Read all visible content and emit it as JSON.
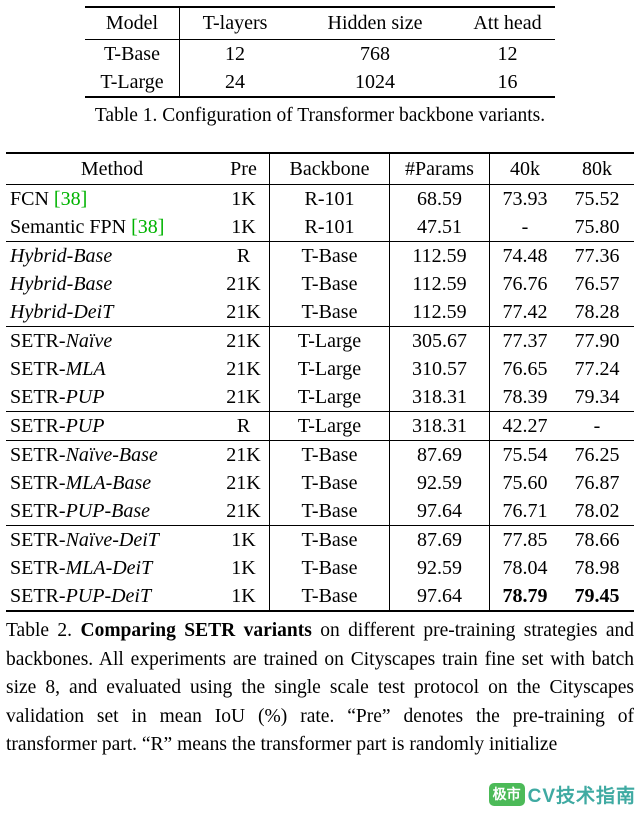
{
  "colors": {
    "citation": "#00b300",
    "watermark_badge": "#3db54a",
    "watermark_text": "#2fa39b"
  },
  "table1": {
    "headers": [
      "Model",
      "T-layers",
      "Hidden size",
      "Att head"
    ],
    "rows": [
      [
        "T-Base",
        "12",
        "768",
        "12"
      ],
      [
        "T-Large",
        "24",
        "1024",
        "16"
      ]
    ],
    "caption": "Table 1. Configuration of Transformer backbone variants."
  },
  "table2": {
    "headers": [
      "Method",
      "Pre",
      "Backbone",
      "#Params",
      "40k",
      "80k"
    ],
    "groups": [
      {
        "rows": [
          {
            "method": [
              {
                "t": "FCN",
                "i": false
              }
            ],
            "cite": "[38]",
            "pre": "1K",
            "backbone": "R-101",
            "params": "68.59",
            "k40": "73.93",
            "k80": "75.52"
          },
          {
            "method": [
              {
                "t": "Semantic FPN",
                "i": false
              }
            ],
            "cite": "[38]",
            "pre": "1K",
            "backbone": "R-101",
            "params": "47.51",
            "k40": "-",
            "k80": "75.80"
          }
        ]
      },
      {
        "rows": [
          {
            "method": [
              {
                "t": "Hybrid-Base",
                "i": true
              }
            ],
            "pre": "R",
            "backbone": "T-Base",
            "params": "112.59",
            "k40": "74.48",
            "k80": "77.36"
          },
          {
            "method": [
              {
                "t": "Hybrid-Base",
                "i": true
              }
            ],
            "pre": "21K",
            "backbone": "T-Base",
            "params": "112.59",
            "k40": "76.76",
            "k80": "76.57"
          },
          {
            "method": [
              {
                "t": "Hybrid-DeiT",
                "i": true
              }
            ],
            "pre": "21K",
            "backbone": "T-Base",
            "params": "112.59",
            "k40": "77.42",
            "k80": "78.28"
          }
        ]
      },
      {
        "rows": [
          {
            "method": [
              {
                "t": "SETR-",
                "i": false
              },
              {
                "t": "Naïve",
                "i": true
              }
            ],
            "pre": "21K",
            "backbone": "T-Large",
            "params": "305.67",
            "k40": "77.37",
            "k80": "77.90"
          },
          {
            "method": [
              {
                "t": "SETR-",
                "i": false
              },
              {
                "t": "MLA",
                "i": true
              }
            ],
            "pre": "21K",
            "backbone": "T-Large",
            "params": "310.57",
            "k40": "76.65",
            "k80": "77.24"
          },
          {
            "method": [
              {
                "t": "SETR-",
                "i": false
              },
              {
                "t": "PUP",
                "i": true
              }
            ],
            "pre": "21K",
            "backbone": "T-Large",
            "params": "318.31",
            "k40": "78.39",
            "k80": "79.34"
          }
        ]
      },
      {
        "rows": [
          {
            "method": [
              {
                "t": "SETR-",
                "i": false
              },
              {
                "t": "PUP",
                "i": true
              }
            ],
            "pre": "R",
            "backbone": "T-Large",
            "params": "318.31",
            "k40": "42.27",
            "k80": "-"
          }
        ]
      },
      {
        "rows": [
          {
            "method": [
              {
                "t": "SETR-",
                "i": false
              },
              {
                "t": "Naïve-Base",
                "i": true
              }
            ],
            "pre": "21K",
            "backbone": "T-Base",
            "params": "87.69",
            "k40": "75.54",
            "k80": "76.25"
          },
          {
            "method": [
              {
                "t": "SETR-",
                "i": false
              },
              {
                "t": "MLA-Base",
                "i": true
              }
            ],
            "pre": "21K",
            "backbone": "T-Base",
            "params": "92.59",
            "k40": "75.60",
            "k80": "76.87"
          },
          {
            "method": [
              {
                "t": "SETR-",
                "i": false
              },
              {
                "t": "PUP-Base",
                "i": true
              }
            ],
            "pre": "21K",
            "backbone": "T-Base",
            "params": "97.64",
            "k40": "76.71",
            "k80": "78.02"
          }
        ]
      },
      {
        "rows": [
          {
            "method": [
              {
                "t": "SETR-",
                "i": false
              },
              {
                "t": "Naïve-DeiT",
                "i": true
              }
            ],
            "pre": "1K",
            "backbone": "T-Base",
            "params": "87.69",
            "k40": "77.85",
            "k80": "78.66"
          },
          {
            "method": [
              {
                "t": "SETR-",
                "i": false
              },
              {
                "t": "MLA-DeiT",
                "i": true
              }
            ],
            "pre": "1K",
            "backbone": "T-Base",
            "params": "92.59",
            "k40": "78.04",
            "k80": "78.98"
          },
          {
            "method": [
              {
                "t": "SETR-",
                "i": false
              },
              {
                "t": "PUP-DeiT",
                "i": true
              }
            ],
            "pre": "1K",
            "backbone": "T-Base",
            "params": "97.64",
            "k40": "78.79",
            "k80": "79.45",
            "b40": true,
            "b80": true
          }
        ]
      }
    ],
    "caption": {
      "prefix": "Table 2. ",
      "bold": "Comparing SETR variants",
      "rest": " on different pre-training strategies and backbones.  All experiments are trained on Cityscapes train fine set with batch size 8, and evaluated using the single scale test protocol on the Cityscapes validation set in mean IoU (%) rate. “Pre” denotes the pre-training of transformer part. “R” means the transformer part is randomly initialize"
    }
  },
  "watermark": {
    "badge": "极市",
    "text": "CV技术指南"
  }
}
